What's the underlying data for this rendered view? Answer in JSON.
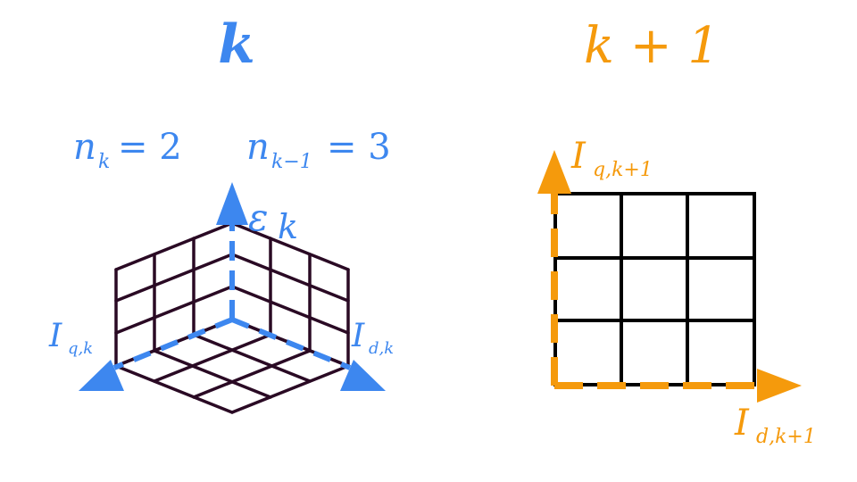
{
  "left_panel": {
    "title": {
      "main": "k"
    },
    "n_k": {
      "var": "n",
      "sub": "k",
      "eq": "= 2"
    },
    "n_km1": {
      "var": "n",
      "sub": "k−1",
      "eq": "= 3"
    },
    "epsilon_label": {
      "var": "ε",
      "sub": "k"
    },
    "iq_label": {
      "var": "I",
      "sub": "q,k"
    },
    "id_label": {
      "var": "I",
      "sub": "d,k"
    }
  },
  "right_panel": {
    "title": {
      "main": "k + 1"
    },
    "iq_label": {
      "var": "I",
      "sub": "q,k+1"
    },
    "id_label": {
      "var": "I",
      "sub": "d,k+1"
    }
  },
  "colors": {
    "blue": "#3d87ef",
    "orange": "#f59a0c",
    "grid_3d": "#2a0a24",
    "grid_2d": "#000000"
  }
}
